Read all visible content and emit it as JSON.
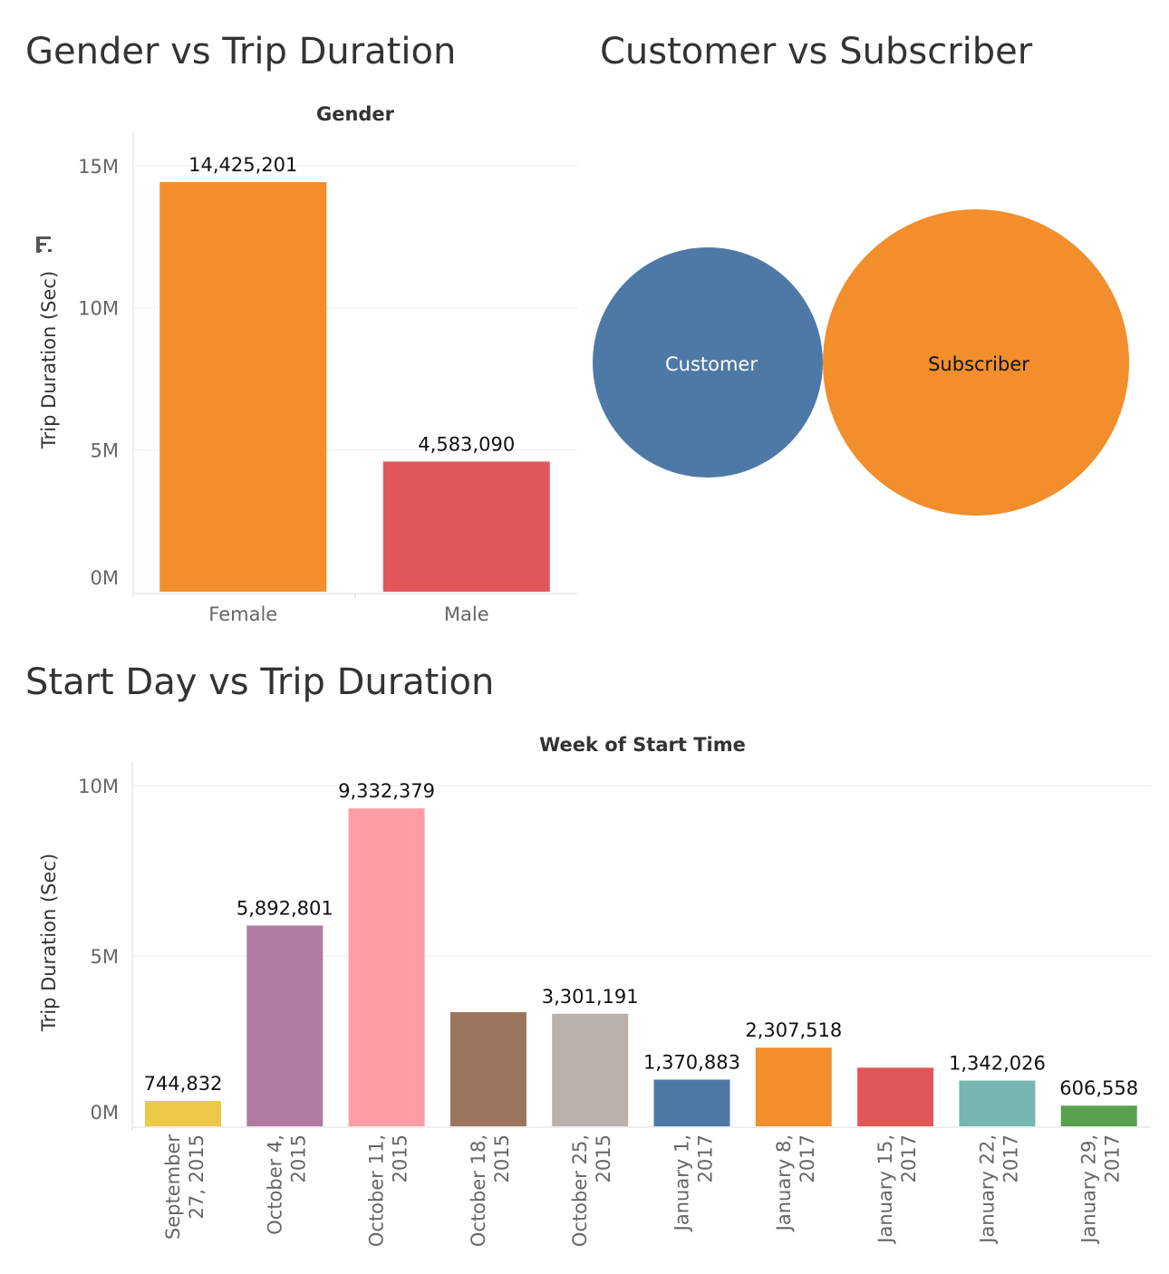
{
  "colors": {
    "female": "#f28e2b",
    "male": "#e15759",
    "customer": "#4e79a7",
    "subscriber": "#f28e2b",
    "week_palette": [
      "#edc948",
      "#b07aa1",
      "#ff9da7",
      "#9c755f",
      "#bab0ac",
      "#4e79a7",
      "#f28e2b",
      "#e15759",
      "#76b7b2",
      "#59a14f"
    ]
  },
  "chart_data": [
    {
      "type": "bar",
      "title": "Gender vs Trip Duration",
      "header": "Gender",
      "ylabel": "Trip Duration (Sec)",
      "categories": [
        "Female",
        "Male"
      ],
      "values": [
        14425201,
        4583090
      ],
      "value_labels": [
        "14,425,201",
        "4,583,090"
      ],
      "ylim": [
        0,
        15000000
      ],
      "yticks": [
        0,
        5000000,
        10000000,
        15000000
      ],
      "ytick_labels": [
        "0M",
        "5M",
        "10M",
        "15M"
      ],
      "sort_icon": "sort-descending-icon",
      "grid": true
    },
    {
      "type": "bubble",
      "title": "Customer vs Subscriber",
      "categories": [
        "Customer",
        "Subscriber"
      ],
      "size_ratio": [
        0.75,
        1.0
      ]
    },
    {
      "type": "bar",
      "title": "Start Day vs Trip Duration",
      "header": "Week of Start Time",
      "ylabel": "Trip Duration (Sec)",
      "categories": [
        [
          "September",
          "27, 2015"
        ],
        [
          "October 4,",
          "2015"
        ],
        [
          "October 11,",
          "2015"
        ],
        [
          "October 18,",
          "2015"
        ],
        [
          "October 25,",
          "2015"
        ],
        [
          "January 1,",
          "2017"
        ],
        [
          "January 8,",
          "2017"
        ],
        [
          "January 15,",
          "2017"
        ],
        [
          "January 22,",
          "2017"
        ],
        [
          "January 29,",
          "2017"
        ]
      ],
      "values": [
        744832,
        5892801,
        9332379,
        3350000,
        3301191,
        1370883,
        2307518,
        1720000,
        1342026,
        606558
      ],
      "value_labels": [
        "744,832",
        "5,892,801",
        "9,332,379",
        "",
        "3,301,191",
        "1,370,883",
        "2,307,518",
        "",
        "1,342,026",
        "606,558"
      ],
      "ylim": [
        0,
        10000000
      ],
      "yticks": [
        0,
        5000000,
        10000000
      ],
      "ytick_labels": [
        "0M",
        "5M",
        "10M"
      ],
      "grid": true
    }
  ]
}
